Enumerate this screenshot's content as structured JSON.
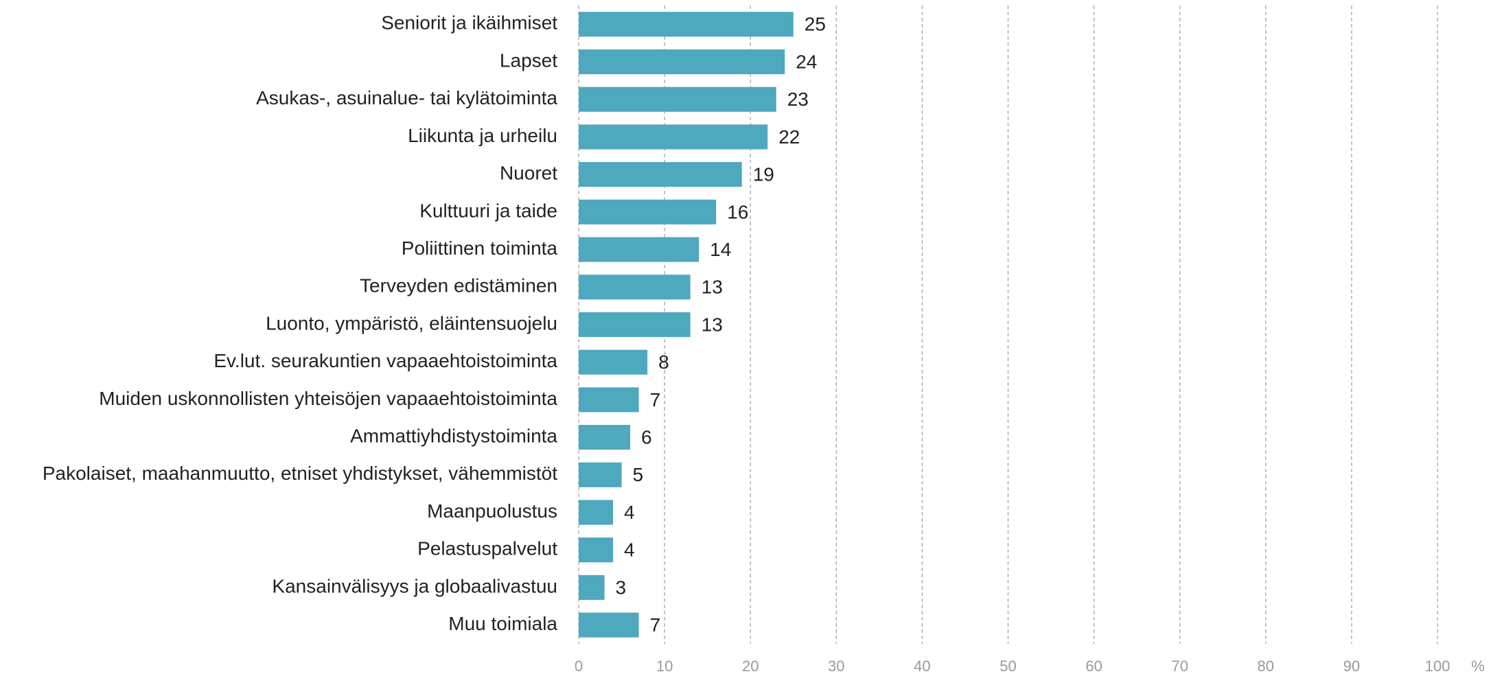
{
  "chart_data": {
    "type": "bar",
    "orientation": "horizontal",
    "categories": [
      "Seniorit ja ikäihmiset",
      "Lapset",
      "Asukas-, asuinalue- tai kylätoiminta",
      "Liikunta ja urheilu",
      "Nuoret",
      "Kulttuuri ja taide",
      "Poliittinen toiminta",
      "Terveyden edistäminen",
      "Luonto, ympäristö, eläintensuojelu",
      "Ev.lut. seurakuntien vapaaehtoistoiminta",
      "Muiden uskonnollisten yhteisöjen vapaaehtoistoiminta",
      "Ammattiyhdistystoiminta",
      "Pakolaiset, maahanmuutto, etniset yhdistykset, vähemmistöt",
      "Maanpuolustus",
      "Pelastuspalvelut",
      "Kansainvälisyys ja globaalivastuu",
      "Muu toimiala"
    ],
    "values": [
      25,
      24,
      23,
      22,
      19,
      16,
      14,
      13,
      13,
      8,
      7,
      6,
      5,
      4,
      4,
      3,
      7
    ],
    "color": "#4ea8be",
    "xlim": [
      0,
      100
    ],
    "xticks": [
      0,
      10,
      20,
      30,
      40,
      50,
      60,
      70,
      80,
      90,
      100
    ],
    "xlabel": "%",
    "grid": true
  }
}
